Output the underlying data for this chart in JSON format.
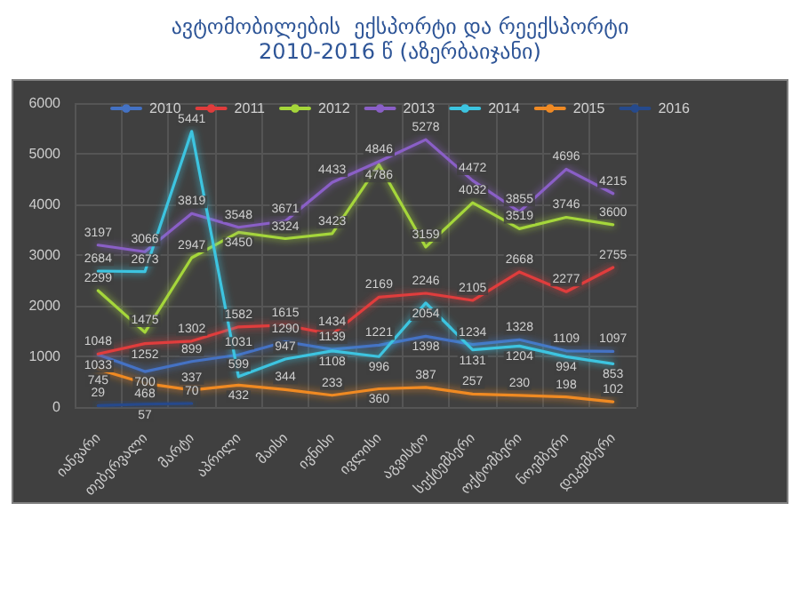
{
  "chart_data": {
    "type": "line",
    "title": "ავტომობილების  ექსპორტი და რეექსპორტი",
    "subtitle": "2010-2016 წ (აზერბაიჯანი)",
    "categories": [
      "იანვარი",
      "თებერვალი",
      "მარტი",
      "აპრილი",
      "მაისი",
      "ივნისი",
      "ივლისი",
      "აგვისტო",
      "სექტემბერი",
      "ოქტომბერი",
      "ნოემბერი",
      "დეკემბერი"
    ],
    "series": [
      {
        "name": "2010",
        "color": "#4472c4",
        "values": [
          1033,
          700,
          899,
          1031,
          1290,
          1139,
          1221,
          1398,
          1234,
          1328,
          1109,
          1097
        ]
      },
      {
        "name": "2011",
        "color": "#e03c3c",
        "values": [
          1048,
          1252,
          1302,
          1582,
          1615,
          1434,
          2169,
          2246,
          2105,
          2668,
          2277,
          2755
        ]
      },
      {
        "name": "2012",
        "color": "#a5d63a",
        "values": [
          2299,
          1475,
          2947,
          3450,
          3324,
          3423,
          4786,
          3159,
          4032,
          3519,
          3746,
          3600
        ]
      },
      {
        "name": "2013",
        "color": "#8a5fc7",
        "values": [
          3197,
          3066,
          3819,
          3548,
          3671,
          4433,
          4846,
          5278,
          4472,
          3855,
          4696,
          4215
        ]
      },
      {
        "name": "2014",
        "color": "#3cc4e0",
        "values": [
          2684,
          2673,
          5441,
          599,
          947,
          1108,
          996,
          2054,
          1131,
          1204,
          994,
          853
        ]
      },
      {
        "name": "2015",
        "color": "#f08a24",
        "values": [
          745,
          468,
          337,
          432,
          344,
          233,
          360,
          387,
          257,
          230,
          198,
          102
        ]
      },
      {
        "name": "2016",
        "color": "#264a8c",
        "values": [
          29,
          57,
          70,
          null,
          null,
          null,
          null,
          null,
          null,
          null,
          null,
          null
        ]
      }
    ],
    "ylim": [
      0,
      6000
    ],
    "yticks": [
      0,
      1000,
      2000,
      3000,
      4000,
      5000,
      6000
    ],
    "grid": true,
    "legend": "top",
    "data_labels": true,
    "marker": "none",
    "line_style": "solid"
  }
}
